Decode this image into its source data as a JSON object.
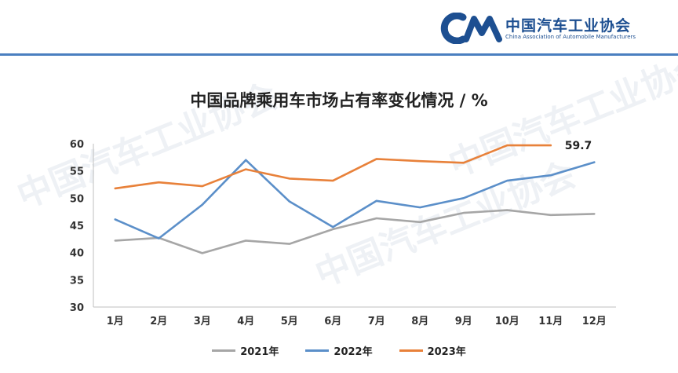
{
  "header": {
    "org_name_cn": "中国汽车工业协会",
    "org_name_en": "China Association of Automobile Manufacturers",
    "logo_letters": "CM",
    "brand_color": "#1d4f91",
    "rule_color": "#4a7fc0"
  },
  "watermark_text": "中国汽车工业协会",
  "chart_data": {
    "type": "line",
    "title": "中国品牌乘用车市场占有率变化情况 / %",
    "categories": [
      "1月",
      "2月",
      "3月",
      "4月",
      "5月",
      "6月",
      "7月",
      "8月",
      "9月",
      "10月",
      "11月",
      "12月"
    ],
    "ylim": [
      30,
      60
    ],
    "yticks": [
      30,
      35,
      40,
      45,
      50,
      55,
      60
    ],
    "grid": false,
    "legend": "bottom",
    "series": [
      {
        "name": "2021年",
        "color": "#a6a6a6",
        "values": [
          42.2,
          42.7,
          39.9,
          42.2,
          41.6,
          44.3,
          46.3,
          45.6,
          47.3,
          47.8,
          46.9,
          47.1
        ]
      },
      {
        "name": "2022年",
        "color": "#5b8fc9",
        "values": [
          46.1,
          42.6,
          48.8,
          57.0,
          49.4,
          44.7,
          49.5,
          48.3,
          50.0,
          53.2,
          54.2,
          56.6
        ]
      },
      {
        "name": "2023年",
        "color": "#e8813a",
        "values": [
          51.8,
          52.9,
          52.2,
          55.3,
          53.6,
          53.2,
          57.2,
          56.8,
          56.5,
          59.7,
          59.7,
          null
        ]
      }
    ],
    "annotations": [
      {
        "series": "2023年",
        "category": "11月",
        "label": "59.7"
      }
    ]
  }
}
